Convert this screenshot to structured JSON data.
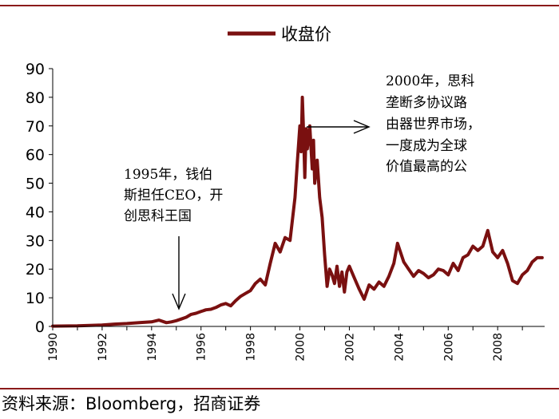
{
  "colors": {
    "series": "#7a1010",
    "rule": "#8b1a1a",
    "axis": "#000000"
  },
  "chart_data": {
    "type": "line",
    "title": "",
    "xlabel": "",
    "ylabel": "",
    "xlim": [
      1990,
      2009.9
    ],
    "ylim": [
      0,
      90
    ],
    "yticks": [
      0,
      10,
      20,
      30,
      40,
      50,
      60,
      70,
      80,
      90
    ],
    "xticks": [
      "1990",
      "1992",
      "1994",
      "1996",
      "1998",
      "2000",
      "2002",
      "2004",
      "2006",
      "2008"
    ],
    "legend": {
      "position": "top-center"
    },
    "series": [
      {
        "name": "收盘价",
        "x": [
          1990.0,
          1991.0,
          1992.0,
          1992.5,
          1993.0,
          1993.5,
          1994.0,
          1994.3,
          1994.6,
          1994.8,
          1995.0,
          1995.2,
          1995.4,
          1995.6,
          1995.8,
          1996.0,
          1996.2,
          1996.4,
          1996.6,
          1996.8,
          1997.0,
          1997.2,
          1997.4,
          1997.6,
          1997.8,
          1998.0,
          1998.2,
          1998.4,
          1998.6,
          1998.8,
          1999.0,
          1999.2,
          1999.4,
          1999.6,
          1999.8,
          1999.9,
          2000.0,
          2000.05,
          2000.1,
          2000.15,
          2000.2,
          2000.25,
          2000.3,
          2000.4,
          2000.5,
          2000.55,
          2000.6,
          2000.7,
          2000.8,
          2000.9,
          2001.0,
          2001.1,
          2001.2,
          2001.3,
          2001.4,
          2001.5,
          2001.6,
          2001.7,
          2001.8,
          2001.9,
          2002.0,
          2002.2,
          2002.4,
          2002.6,
          2002.8,
          2003.0,
          2003.2,
          2003.4,
          2003.6,
          2003.8,
          2003.95,
          2004.2,
          2004.4,
          2004.6,
          2004.8,
          2005.0,
          2005.2,
          2005.4,
          2005.6,
          2005.8,
          2006.0,
          2006.2,
          2006.4,
          2006.6,
          2006.8,
          2007.0,
          2007.2,
          2007.4,
          2007.6,
          2007.8,
          2008.0,
          2008.2,
          2008.4,
          2008.6,
          2008.8,
          2009.0,
          2009.2,
          2009.4,
          2009.6,
          2009.8
        ],
        "values": [
          0.1,
          0.2,
          0.5,
          0.8,
          1.0,
          1.3,
          1.6,
          2.2,
          1.3,
          1.6,
          2.0,
          2.6,
          3.2,
          4.2,
          4.6,
          5.2,
          5.8,
          6.0,
          6.6,
          7.5,
          8.0,
          7.2,
          9.0,
          10.5,
          11.5,
          12.5,
          15.0,
          16.5,
          14.5,
          22.0,
          29.0,
          26.0,
          31.0,
          30.0,
          45.0,
          58.0,
          70.0,
          61.0,
          80.0,
          67.0,
          52.0,
          69.0,
          62.0,
          70.0,
          55.0,
          65.0,
          50.0,
          58.0,
          45.0,
          38.0,
          25.0,
          14.0,
          20.0,
          18.0,
          15.0,
          21.0,
          14.0,
          19.0,
          12.0,
          19.0,
          21.0,
          17.0,
          13.0,
          9.5,
          14.5,
          13.0,
          15.5,
          14.0,
          17.5,
          22.0,
          29.0,
          22.5,
          20.0,
          17.5,
          19.5,
          18.5,
          17.0,
          18.0,
          20.0,
          19.5,
          18.0,
          22.0,
          19.5,
          24.0,
          25.0,
          28.0,
          26.5,
          28.0,
          33.5,
          26.0,
          24.0,
          26.5,
          22.0,
          16.0,
          15.0,
          18.0,
          19.5,
          22.5,
          24.0,
          24.0
        ]
      }
    ],
    "annotations": [
      {
        "lines": [
          "1995年，钱伯",
          "斯担任CEO，开",
          "创思科王国"
        ],
        "x": 1995.0,
        "y": 5.0
      },
      {
        "lines": [
          "2000年，思科",
          "垄断多协议路",
          "由器世界市场，",
          "一度成为全球",
          "价值最高的公"
        ],
        "x": 2000.4,
        "y": 70.0
      }
    ]
  },
  "source": "资料来源：Bloomberg，招商证券"
}
